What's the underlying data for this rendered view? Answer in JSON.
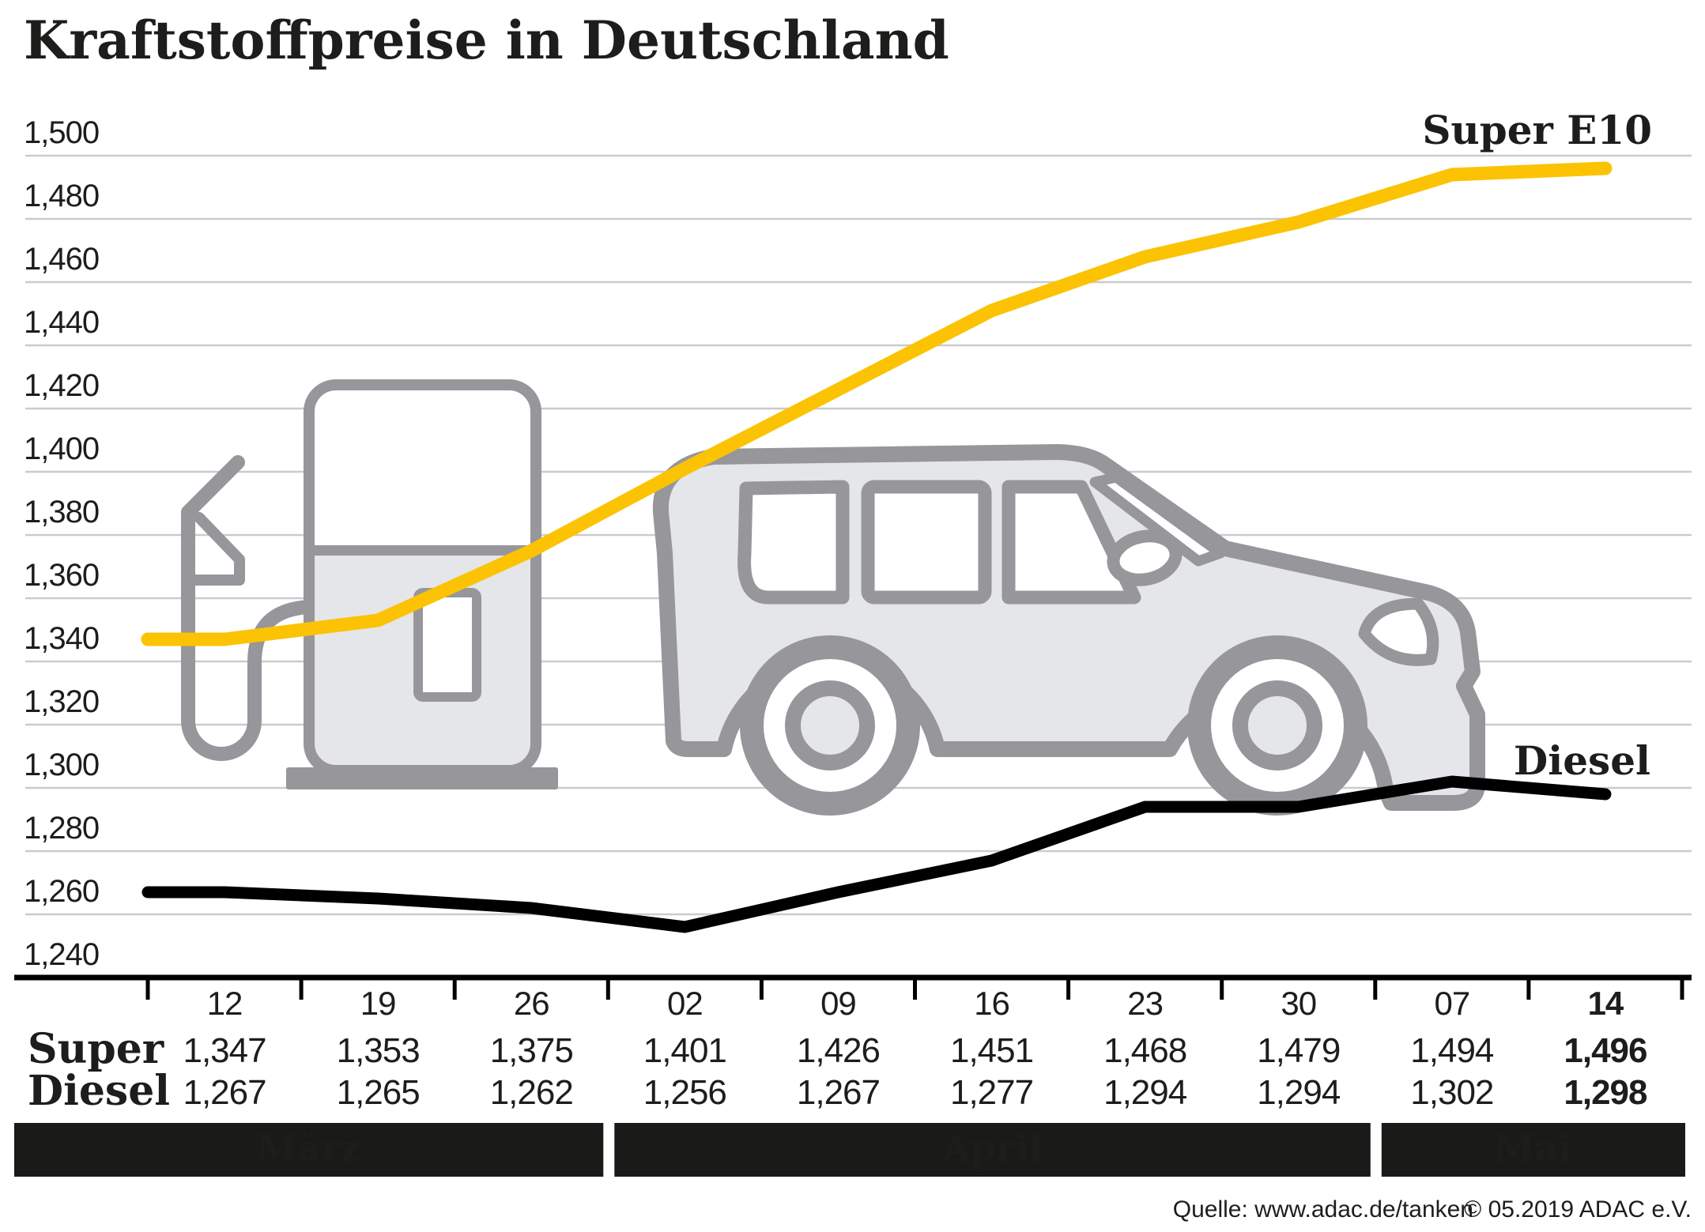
{
  "title": "Kraftstoffpreise in Deutschland",
  "footer": {
    "source": "Quelle: www.adac.de/tanken",
    "copyright": "© 05.2019  ADAC e.V."
  },
  "colors": {
    "super_yellow": "#FBC303",
    "diesel_black": "#000000",
    "text": "#1D1D1B",
    "gridline": "#CBCBCB",
    "axis": "#000000",
    "band_bg": "#1A1A18",
    "band_text": "#FFFFFF",
    "illustration_stroke": "#96969B",
    "illustration_fill": "#E4E6E9",
    "illustration_white": "#FFFFFF"
  },
  "icons": {
    "fuel_pump": "fuel-pump-illustration",
    "car": "car-illustration"
  },
  "chart_data": {
    "type": "line",
    "title": "Kraftstoffpreise in Deutschland",
    "ylim": [
      1240,
      1500
    ],
    "ytick_step": 20,
    "y_tick_labels": [
      "1,240",
      "1,260",
      "1,280",
      "1,300",
      "1,320",
      "1,340",
      "1,360",
      "1,380",
      "1,400",
      "1,420",
      "1,440",
      "1,460",
      "1,480",
      "1,500"
    ],
    "x_tick_labels": [
      "12",
      "19",
      "26",
      "02",
      "09",
      "16",
      "23",
      "30",
      "07",
      "14"
    ],
    "highlight_last_column": true,
    "grid": true,
    "legend_position": "inline-right",
    "months": [
      {
        "label": "März",
        "from_col": 0,
        "to_col": 2
      },
      {
        "label": "April",
        "from_col": 3,
        "to_col": 7
      },
      {
        "label": "Mai",
        "from_col": 8,
        "to_col": 9
      }
    ],
    "series": [
      {
        "name": "Super",
        "legend_label": "Super E10",
        "color": "#FBC303",
        "values": [
          1347,
          1353,
          1375,
          1401,
          1426,
          1451,
          1468,
          1479,
          1494,
          1496
        ]
      },
      {
        "name": "Diesel",
        "legend_label": "Diesel",
        "color": "#000000",
        "values": [
          1267,
          1265,
          1262,
          1256,
          1267,
          1277,
          1294,
          1294,
          1302,
          1298
        ]
      }
    ],
    "table": {
      "row_labels": [
        "Super",
        "Diesel"
      ]
    }
  }
}
